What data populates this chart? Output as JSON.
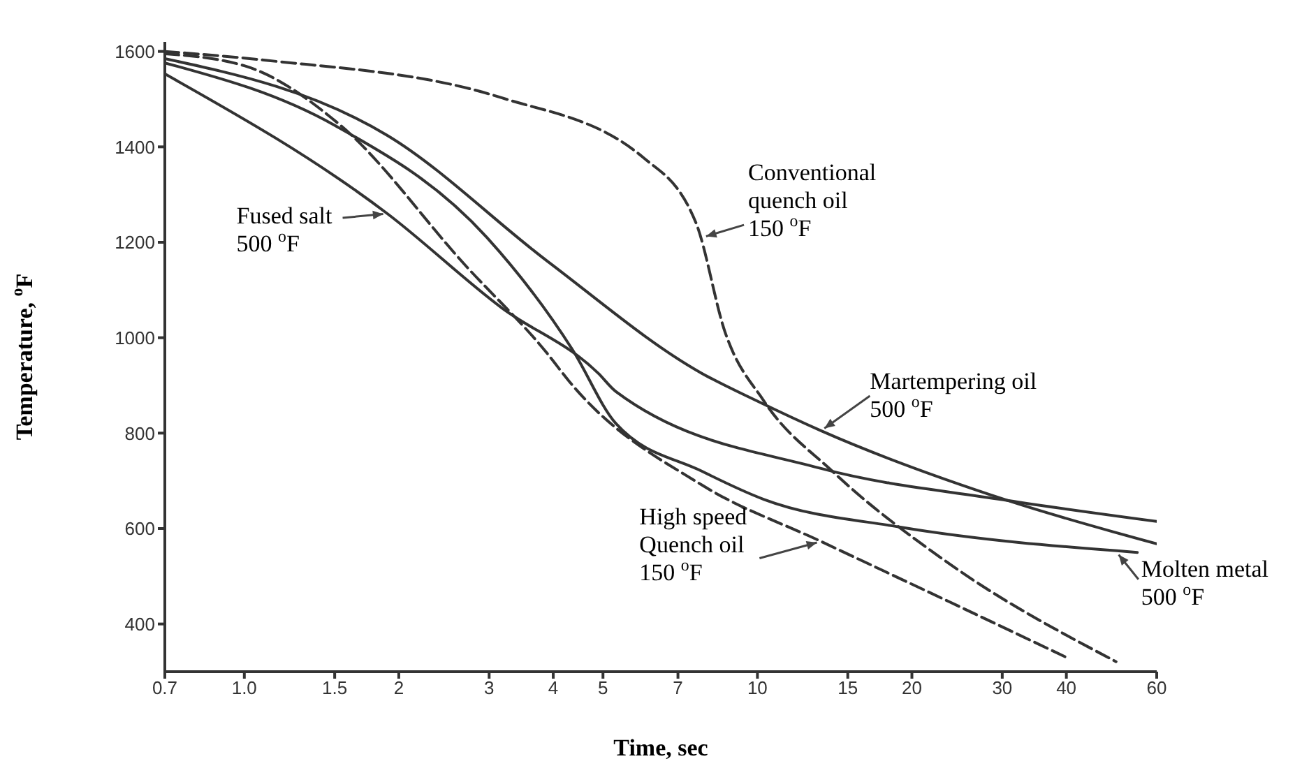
{
  "chart_data": {
    "type": "line",
    "xlabel": "Time, sec",
    "ylabel": "Temperature, $^{o}$F",
    "log": "x",
    "xlim": [
      0.7,
      60
    ],
    "ylim": [
      300,
      1620
    ],
    "xticks": [
      0.7,
      {
        "value": 1,
        "label": "1.0"
      },
      1.5,
      2,
      3,
      4,
      5,
      7,
      10,
      15,
      20,
      30,
      40,
      60
    ],
    "yticks": [
      400,
      600,
      800,
      1000,
      1200,
      1400,
      1600
    ],
    "grid": false,
    "legend": false,
    "marker": "none",
    "series": [
      {
        "color": "#333333",
        "line_style": "solid",
        "x": [
          0.7,
          1.9,
          3.17,
          4.9,
          5.3,
          13.3,
          30.7,
          60
        ],
        "values": [
          1553,
          1260,
          1063,
          925,
          887,
          726,
          659,
          615
        ]
      },
      {
        "color": "#333333",
        "line_style": "dashed",
        "x": [
          0.7,
          1.09,
          3.17,
          6.0,
          7.6,
          8.64,
          10.3,
          14.0,
          23.6,
          50
        ],
        "values": [
          1600,
          1582,
          1503,
          1377,
          1239,
          1013,
          867,
          720,
          527,
          321
        ]
      },
      {
        "color": "#333333",
        "line_style": "solid",
        "x": [
          0.7,
          1.9,
          3.9,
          7.8,
          10,
          13.3,
          30.7,
          60
        ],
        "values": [
          1585,
          1424,
          1160,
          925,
          867,
          805,
          659,
          568
        ]
      },
      {
        "color": "#333333",
        "line_style": "dashed",
        "x": [
          0.7,
          1.0,
          1.54,
          2.7,
          3.9,
          4.3,
          7.8,
          13.3,
          23.6,
          40
        ],
        "values": [
          1595,
          1570,
          1445,
          1151,
          966,
          908,
          691,
          573,
          447,
          330
        ]
      },
      {
        "color": "#333333",
        "line_style": "solid",
        "x": [
          0.7,
          1.5,
          2.97,
          4.36,
          5.3,
          7.8,
          10.3,
          19,
          55
        ],
        "values": [
          1576,
          1445,
          1210,
          975,
          820,
          720,
          661,
          603,
          550
        ]
      }
    ],
    "annotations": [
      {
        "text": "Fused salt\n500 $^{o}$F",
        "x": 1.9,
        "y": 1260
      },
      {
        "text": "Conventional\nquench oil\n150 $^{o}$F",
        "x": 7.8,
        "y": 1210
      },
      {
        "text": "Martempering oil\n500 $^{o}$F",
        "x": 13.3,
        "y": 805
      },
      {
        "text": "High speed\nQuench oil\n150 $^{o}$F",
        "x": 13.3,
        "y": 573
      },
      {
        "text": "Molten metal\n500 $^{o}$F",
        "x": 50,
        "y": 552
      }
    ]
  }
}
